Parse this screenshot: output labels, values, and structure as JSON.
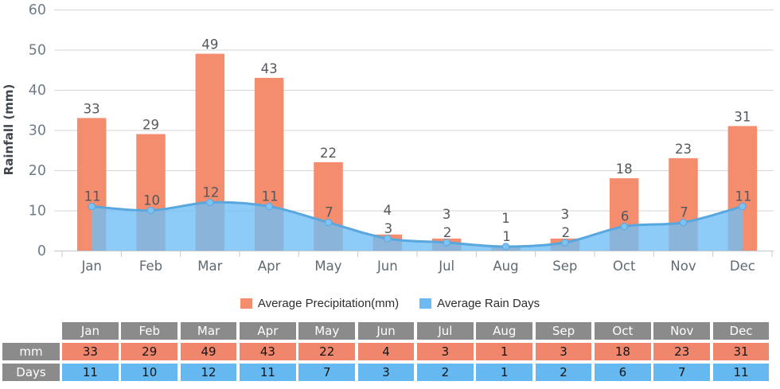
{
  "chart_data": {
    "type": "bar+area",
    "title": "",
    "categories": [
      "Jan",
      "Feb",
      "Mar",
      "Apr",
      "May",
      "Jun",
      "Jul",
      "Aug",
      "Sep",
      "Oct",
      "Nov",
      "Dec"
    ],
    "series": [
      {
        "name": "Average Precipitation(mm)",
        "type": "bar",
        "color": "#f48c6e",
        "values": [
          33,
          29,
          49,
          43,
          22,
          4,
          3,
          1,
          3,
          18,
          23,
          31
        ]
      },
      {
        "name": "Average Rain Days",
        "type": "area",
        "line_color": "#58a7df",
        "fill_color": "rgba(113,190,246,0.8)",
        "dot_color": "#7ec2f1",
        "values": [
          11,
          10,
          12,
          11,
          7,
          3,
          2,
          1,
          2,
          6,
          7,
          11
        ]
      }
    ],
    "xlabel": "",
    "ylabel": "Rainfall (mm)",
    "ylim": [
      0,
      60
    ],
    "yticks": [
      0,
      10,
      20,
      30,
      40,
      50,
      60
    ],
    "grid": true,
    "legend_position": "bottom",
    "style_colors": {
      "grid_line": "#d5d5d5",
      "axis_line": "#c4c8cc",
      "tick_label": "#6f7d89",
      "month_label": "#5f6a73",
      "value_label": "#54585c",
      "axis_title": "#41474d"
    }
  },
  "legend": {
    "items": [
      {
        "label": "Average Precipitation(mm)",
        "color": "#f48c6e"
      },
      {
        "label": "Average Rain Days",
        "color": "#6cbbf0"
      }
    ]
  },
  "table": {
    "corner_label": "",
    "header_bg": "#8b8b8b",
    "header_text_color": "#ffffff",
    "value_text_color": "#141414",
    "columns": [
      "Jan",
      "Feb",
      "Mar",
      "Apr",
      "May",
      "Jun",
      "Jul",
      "Aug",
      "Sep",
      "Oct",
      "Nov",
      "Dec"
    ],
    "rows": [
      {
        "label": "mm",
        "color": "#f0876c",
        "values": [
          33,
          29,
          49,
          43,
          22,
          4,
          3,
          1,
          3,
          18,
          23,
          31
        ]
      },
      {
        "label": "Days",
        "color": "#66b9f0",
        "values": [
          11,
          10,
          12,
          11,
          7,
          3,
          2,
          1,
          2,
          6,
          7,
          11
        ]
      }
    ]
  }
}
